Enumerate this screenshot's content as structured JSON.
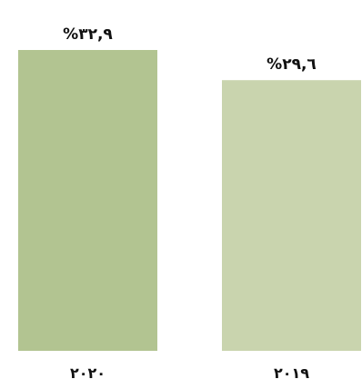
{
  "chart_data": {
    "type": "bar",
    "categories": [
      "٢٠٢٠",
      "٢٠١٩"
    ],
    "values": [
      32.9,
      29.6
    ],
    "value_labels": [
      "%٣٢,٩",
      "%٢٩,٦"
    ],
    "bar_colors": [
      "#b2c491",
      "#c9d4ae"
    ],
    "title": "",
    "xlabel": "",
    "ylabel": "",
    "ylim": [
      0,
      32.9
    ],
    "grid": false,
    "legend": "none"
  }
}
